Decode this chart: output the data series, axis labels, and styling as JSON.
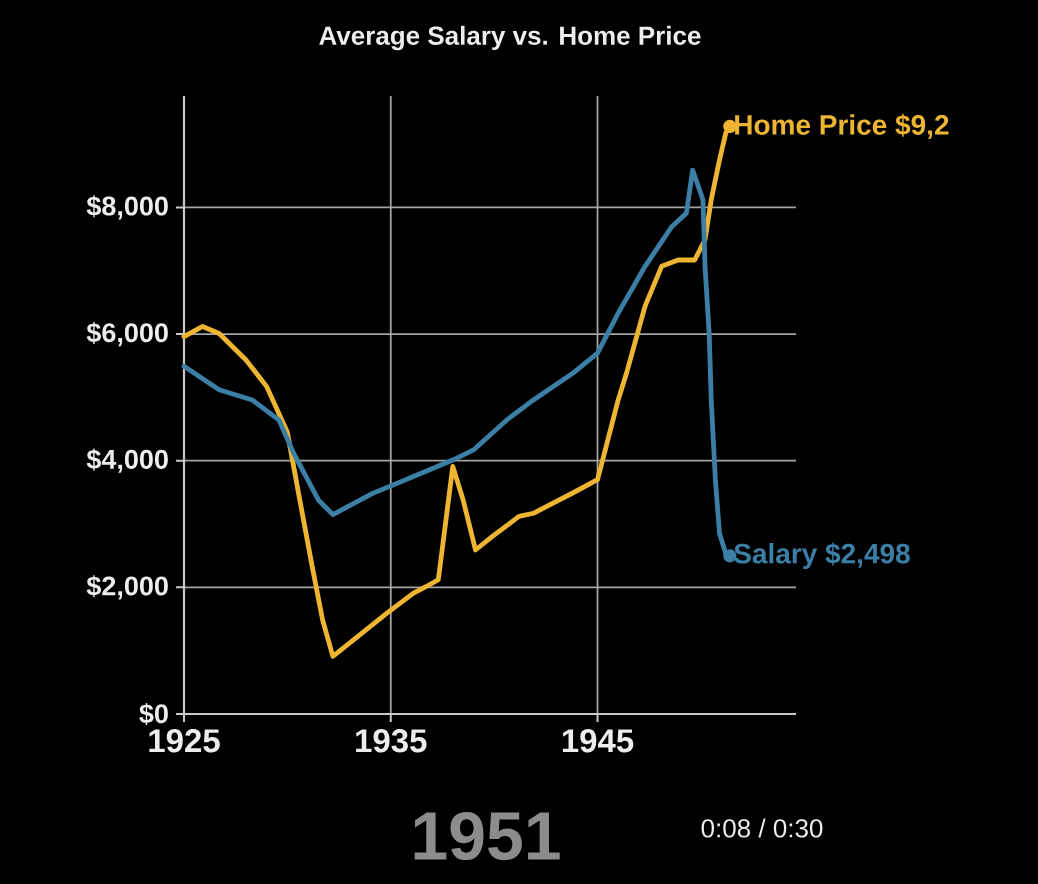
{
  "chart_data": {
    "type": "line",
    "title": "Average Salary vs. Home Price",
    "xlim": [
      1925,
      1954.6
    ],
    "ylim": [
      0,
      9760
    ],
    "xticks": [
      1925,
      1935,
      1945
    ],
    "yticks": [
      {
        "value": 0,
        "label": "$0"
      },
      {
        "value": 2000,
        "label": "$2,000"
      },
      {
        "value": 4000,
        "label": "$4,000"
      },
      {
        "value": 6000,
        "label": "$6,000"
      },
      {
        "value": 8000,
        "label": "$8,000"
      }
    ],
    "grid": true,
    "series": [
      {
        "color": "#edb532",
        "x": [
          1925.0,
          1925.9,
          1926.7,
          1928.0,
          1929.0,
          1930.0,
          1930.6,
          1931.2,
          1931.7,
          1932.2,
          1933.2,
          1934.8,
          1936.1,
          1936.7,
          1937.3,
          1938.0,
          1938.5,
          1939.1,
          1939.9,
          1941.2,
          1941.9,
          1943.8,
          1945.0,
          1945.5,
          1946.0,
          1946.4,
          1947.3,
          1948.1,
          1948.9,
          1949.7,
          1950.2,
          1950.5,
          1950.9,
          1951.2,
          1951.4
        ],
        "values": [
          5960,
          6120,
          6010,
          5590,
          5170,
          4450,
          3380,
          2330,
          1490,
          910,
          1170,
          1590,
          1910,
          2010,
          2120,
          3910,
          3380,
          2590,
          2800,
          3120,
          3170,
          3490,
          3700,
          4330,
          4960,
          5380,
          6440,
          7070,
          7170,
          7170,
          7490,
          8120,
          8750,
          9170,
          9280
        ]
      },
      {
        "color": "#3c7fa6",
        "x": [
          1925.0,
          1926.7,
          1928.3,
          1929.6,
          1930.3,
          1931.5,
          1932.2,
          1934.1,
          1936.1,
          1938.0,
          1939.0,
          1940.6,
          1941.9,
          1943.8,
          1945.0,
          1946.0,
          1947.3,
          1948.6,
          1949.3,
          1949.6,
          1950.1,
          1950.2,
          1950.4,
          1950.5,
          1950.7,
          1950.9,
          1951.2,
          1951.4
        ],
        "values": [
          5490,
          5120,
          4960,
          4640,
          4120,
          3380,
          3150,
          3480,
          3750,
          4010,
          4170,
          4640,
          4960,
          5380,
          5700,
          6330,
          7070,
          7700,
          7910,
          8590,
          8120,
          7070,
          6010,
          4960,
          3700,
          2850,
          2540,
          2498
        ]
      }
    ],
    "annotations": [
      {
        "text": "Home Price $9,2",
        "x": 1951.4,
        "y": 9280
      },
      {
        "text": "Salary  $2,498",
        "x": 1951.4,
        "y": 2498
      },
      "1951",
      "0:08 / 0:30"
    ]
  }
}
